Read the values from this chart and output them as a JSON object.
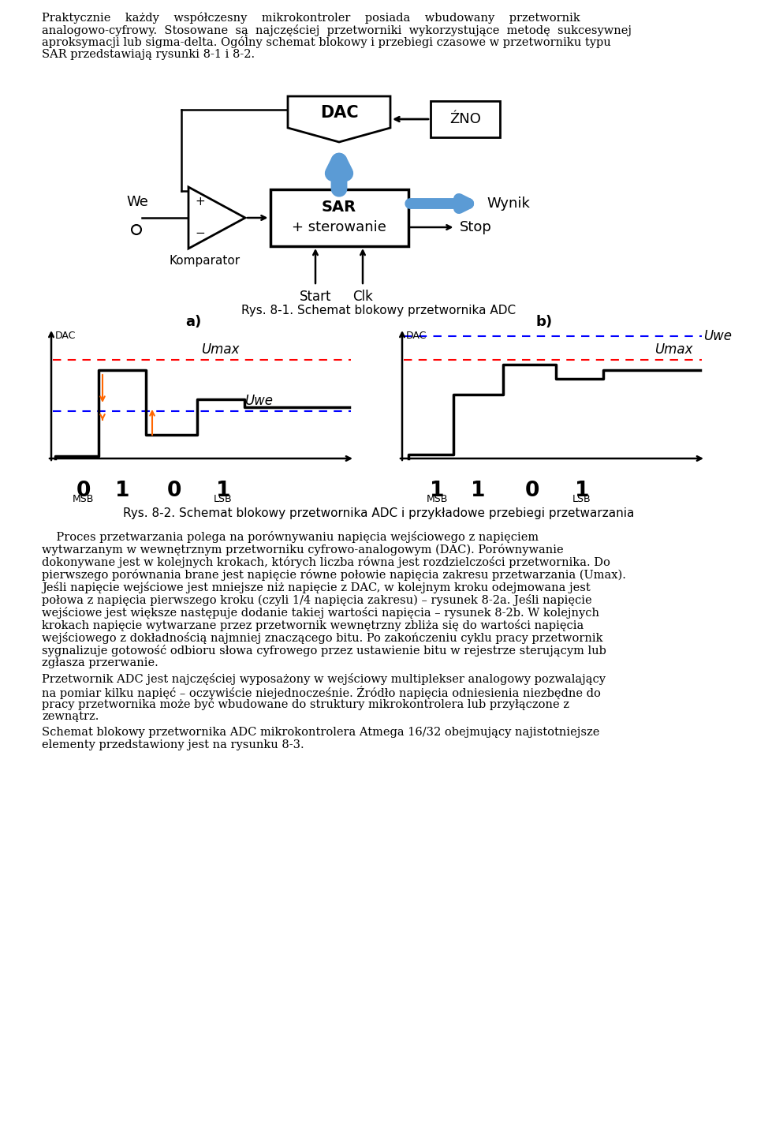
{
  "page_width": 9.6,
  "page_height": 14.51,
  "bg_color": "#ffffff",
  "text_color": "#000000",
  "top_paragraph": "Praktycznie każdy współczesny mikrokontroler posiada wbudowany przetwornik analogowo-cyfrowy. Stosowane są najczęściej przetworniki wykorzystujące metodę sukcesywnej aproksymacji lub sigma-delta. Ogólny schemat blokowy i przebiegi czasowe w przetworniku typu SAR przedstawiają rysunki 8-1 i 8-2.",
  "fig1_caption": "Rys. 8-1. Schemat blokowy przetwornika ADC",
  "fig2_caption": "Rys. 8-2. Schemat blokowy przetwornika ADC i przykładowe przebiegi przetwarzania",
  "para1_line1": "    Proces przetwarzania polega na porównywaniu napięcia wejściowego z napięciem",
  "para1_line2": "wytwarzanym w wewnętrznym przetworniku cyfrowo-analogowym (",
  "para1_bold1": "DAC",
  "para1_line3": "). Porównywanie dokonywane jest w kolejnych krokach, których liczba równa jest rozdzielczości przetwornika. Do",
  "para1_line4": "pierwszego porównania brane jest napięcie równe połowie napięcia zakresu przetwarzania (",
  "para1_bold2": "Umax",
  "para1_line5": ").",
  "para1_line6": "Jeśli napięcie wejściowe jest mniejsze niż napięcie z ",
  "para1_bold3": "DAC",
  "para1_line7": ", w kolejnym kroku odejmowana jest połowa z napięcia pierwszego kroku (czyli 1/4 napięcia zakresu) – rysunek 8-2a. Jeśli napięcie wejściowe jest większe następuje dodanie takiej wartości napięcia – rysunek 8-2b. W kolejnych krokach napięcie wytwarzane przez przetwornik wewnętrzny zbliża się do wartości napięcia wejściowego z dokładnością najmniej znaczącego bitu. Po zakończeniu cyklu pracy przetwornik sygnalizuje gotowość odbioru słowa cyfrowego przez ustawienie bitu w rejestrze sterującym lub zgłasza przerwanie.",
  "para2": "Przetwornik ADC jest najczęściej wyposażony w wejściowy multiplekser analogowy pozwalający na pomiar kilku napięć – oczywiście niejednocześnie. Źródło napięcia odniesienia niezbędne do pracy przetwornika może być wbudowane do struktury mikrokontrolera lub przyłączone z zewnątrz.",
  "para3": "Schemat blokowy przetwornika ADC mikrokontrolera Atmega 16/32 obejmujący najistotniejsze elementy przedstawiony jest na rysunku 8-3.",
  "blue_color": "#5B9BD5",
  "red_color": "#FF0000",
  "orange_color": "#FF6600",
  "dac_line_color": "#FF0000",
  "uwe_line_color": "#0000FF"
}
